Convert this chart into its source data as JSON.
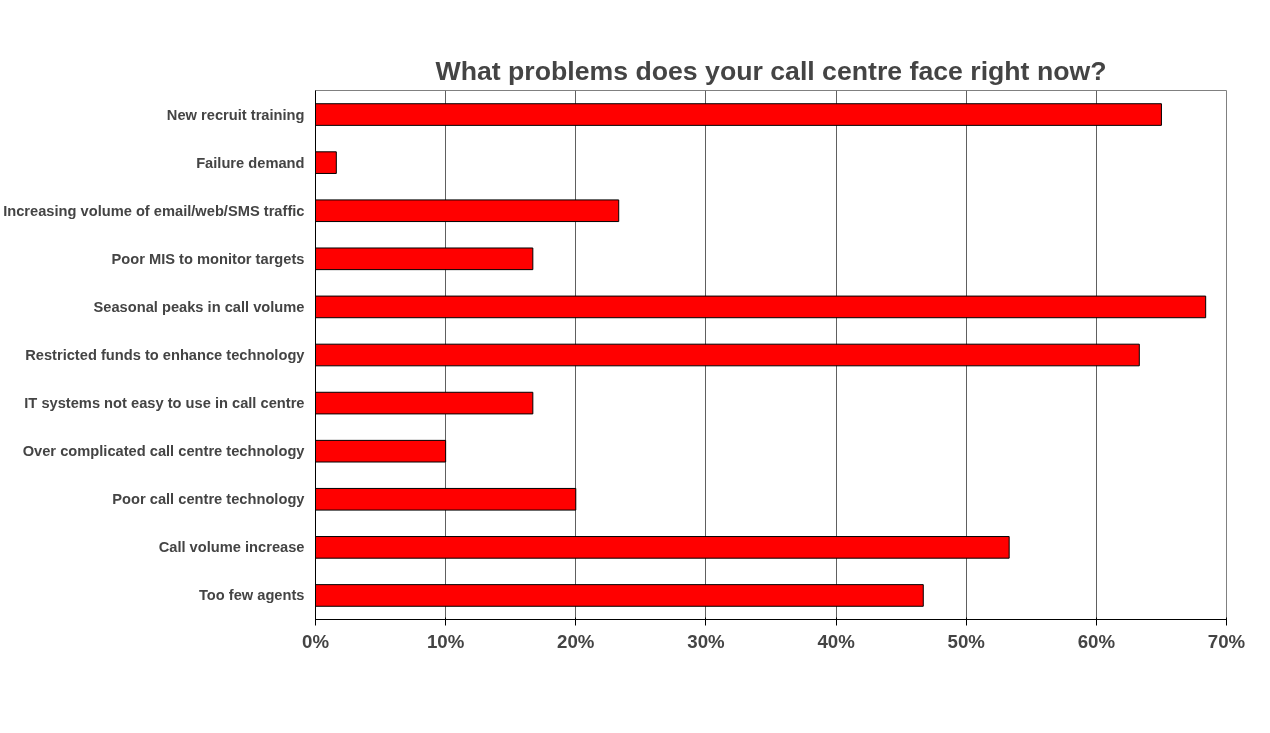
{
  "chart_data": {
    "type": "bar",
    "orientation": "horizontal",
    "title": "What problems does your call centre face right now?",
    "categories": [
      "New recruit training",
      "Failure demand",
      "Increasing volume of email/web/SMS traffic",
      "Poor MIS to monitor targets",
      "Seasonal peaks in call volume",
      "Restricted funds to enhance technology",
      "IT systems not easy to use in call centre",
      "Over complicated call centre technology",
      "Poor call centre technology",
      "Call volume increase",
      "Too few agents"
    ],
    "values": [
      65,
      1.6,
      23.3,
      16.7,
      68.4,
      63.3,
      16.7,
      10,
      20,
      53.3,
      46.7
    ],
    "color": "#ff0000",
    "xlim": [
      0,
      70
    ],
    "xticks": [
      {
        "value": 0,
        "label": "0%"
      },
      {
        "value": 10,
        "label": "10%"
      },
      {
        "value": 20,
        "label": "20%"
      },
      {
        "value": 30,
        "label": "30%"
      },
      {
        "value": 40,
        "label": "40%"
      },
      {
        "value": 50,
        "label": "50%"
      },
      {
        "value": 60,
        "label": "60%"
      },
      {
        "value": 70,
        "label": "70%"
      }
    ],
    "grid": "x"
  }
}
